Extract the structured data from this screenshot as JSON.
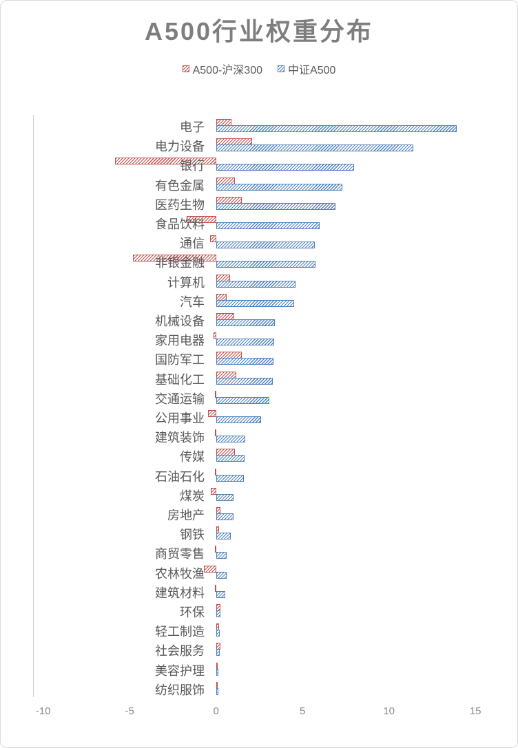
{
  "chart_data": {
    "type": "bar",
    "orientation": "horizontal",
    "title": "A500行业权重分布",
    "categories": [
      "电子",
      "电力设备",
      "银行",
      "有色金属",
      "医药生物",
      "食品饮料",
      "通信",
      "非银金融",
      "计算机",
      "汽车",
      "机械设备",
      "家用电器",
      "国防军工",
      "基础化工",
      "交通运输",
      "公用事业",
      "建筑装饰",
      "传媒",
      "石油石化",
      "煤炭",
      "房地产",
      "钢铁",
      "商贸零售",
      "农林牧渔",
      "建筑材料",
      "环保",
      "轻工制造",
      "社会服务",
      "美容护理",
      "纺织服饰"
    ],
    "series": [
      {
        "name": "A500-沪深300",
        "color": "#C0504D",
        "values": [
          0.9,
          2.1,
          -5.85,
          1.1,
          1.5,
          -1.7,
          -0.33,
          -4.8,
          0.8,
          0.6,
          1.05,
          -0.15,
          1.5,
          1.15,
          -0.05,
          -0.45,
          -0.05,
          1.1,
          -0.05,
          -0.3,
          0.25,
          0.16,
          -0.07,
          -0.7,
          -0.05,
          0.25,
          0.17,
          0.25,
          0.08,
          0.06
        ]
      },
      {
        "name": "中证A500",
        "color": "#4F81BD",
        "values": [
          13.9,
          11.4,
          8.0,
          7.3,
          6.9,
          6.0,
          5.7,
          5.75,
          4.6,
          4.5,
          3.4,
          3.35,
          3.3,
          3.28,
          3.1,
          2.6,
          1.7,
          1.65,
          1.6,
          1.0,
          1.0,
          0.85,
          0.6,
          0.6,
          0.55,
          0.25,
          0.2,
          0.2,
          0.12,
          0.12
        ]
      }
    ],
    "x_ticks": [
      -10,
      -5,
      0,
      5,
      10,
      15
    ],
    "xlim": [
      -10.6,
      15.5
    ],
    "grid": false,
    "legend_position": "top"
  }
}
